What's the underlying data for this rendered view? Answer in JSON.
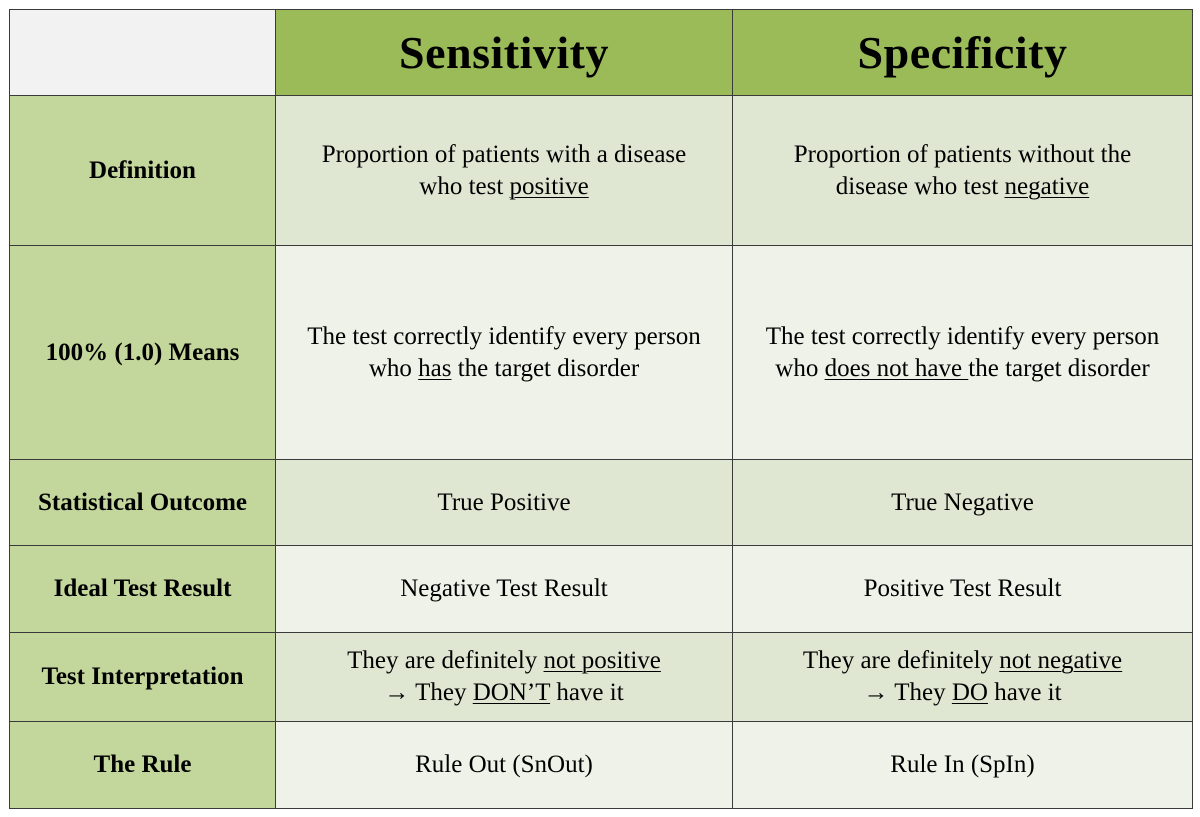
{
  "header": {
    "col1": "Sensitivity",
    "col2": "Specificity"
  },
  "rows": [
    {
      "label": "Definition",
      "sensitivity": {
        "line1": "Proportion of patients with a disease",
        "line2_pre": "who test ",
        "line2_u": "positive"
      },
      "specificity": {
        "line1": "Proportion of patients without the",
        "line2_pre": "disease who test ",
        "line2_u": "negative"
      }
    },
    {
      "label": "100% (1.0) Means",
      "sensitivity": {
        "line1": "The test correctly identify every person",
        "line2_pre": "who ",
        "line2_u": "has",
        "line2_post": " the target disorder"
      },
      "specificity": {
        "line1": "The test correctly identify every person",
        "line2_pre": "who ",
        "line2_u": "does not have ",
        "line2_post": "the target disorder"
      }
    },
    {
      "label": "Statistical Outcome",
      "sensitivity": "True Positive",
      "specificity": "True Negative"
    },
    {
      "label": "Ideal Test Result",
      "sensitivity": "Negative Test Result",
      "specificity": "Positive Test Result"
    },
    {
      "label": "Test Interpretation",
      "sensitivity": {
        "line1_pre": "They are definitely ",
        "line1_u": "not positive",
        "line2_pre": "→ They ",
        "line2_u": "DON’T",
        "line2_post": " have it"
      },
      "specificity": {
        "line1_pre": "They are definitely ",
        "line1_u": "not negative",
        "line2_pre": "→ They ",
        "line2_u": "DO",
        "line2_post": " have it"
      }
    },
    {
      "label": "The Rule",
      "sensitivity": "Rule Out (SnOut)",
      "specificity": "Rule In (SpIn)"
    }
  ],
  "colors": {
    "header_green": "#9bbb59",
    "row_label_green": "#c3d69b",
    "band_dark": "#dfe7d2",
    "band_light": "#eef2e8",
    "corner": "#f2f2f2",
    "border": "#3a3a3a"
  }
}
